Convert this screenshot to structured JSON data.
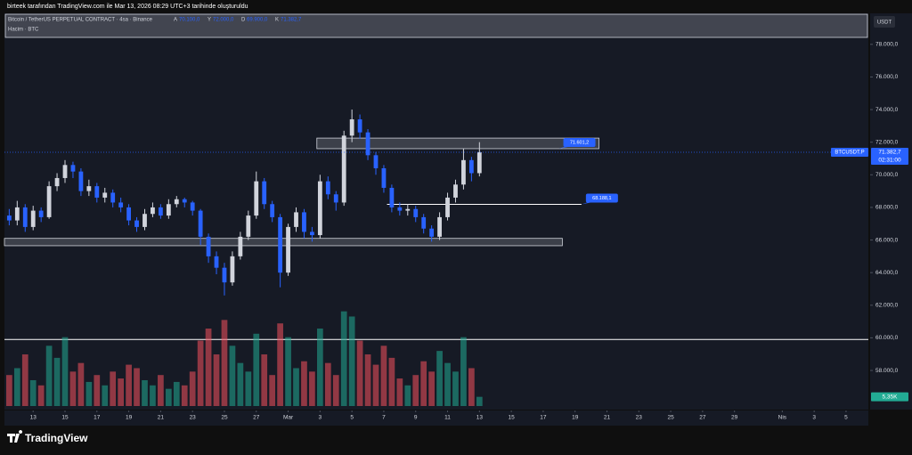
{
  "header": "birteek tarafından TradingView.com ile Mar 13, 2026 08:29 UTC+3 tarihinde oluşturuldu",
  "footer": "TradingView",
  "chart_data": {
    "type": "candlestick",
    "title": "Bitcoin / TetherUS PERPETUAL CONTRACT · 4sa · Binance",
    "ohlc_legend": [
      {
        "label": "A",
        "value": "70.100,0"
      },
      {
        "label": "Y",
        "value": "72.000,0"
      },
      {
        "label": "D",
        "value": "69.900,0"
      },
      {
        "label": "K",
        "value": "71.382,7"
      }
    ],
    "volume_title": "Hacim · BTC",
    "currency": "USDT",
    "symbol": "BTCUSDT.P",
    "last_price": {
      "value": 71382.7,
      "label": "71.382,7"
    },
    "countdown": "02:31:00",
    "volume_label": {
      "value": 5.35,
      "label": "5,35K"
    },
    "up_color": "#d1d4dc",
    "down_color": "#2962ff",
    "volume_up_color": "#22ab94",
    "volume_down_color": "#f7525f",
    "grid": false,
    "xlim": [
      -1.8,
      52.4
    ],
    "ylim": [
      55600,
      79900
    ],
    "volume_ylim": [
      0,
      60
    ],
    "yticks": [
      {
        "value": 58000,
        "label": "58.000,0"
      },
      {
        "value": 60000,
        "label": "60.000,0"
      },
      {
        "value": 62000,
        "label": "62.000,0"
      },
      {
        "value": 64000,
        "label": "64.000,0"
      },
      {
        "value": 66000,
        "label": "66.000,0"
      },
      {
        "value": 68000,
        "label": "68.000,0"
      },
      {
        "value": 70000,
        "label": "70.000,0"
      },
      {
        "value": 72000,
        "label": "72.000,0"
      },
      {
        "value": 74000,
        "label": "74.000,0"
      },
      {
        "value": 76000,
        "label": "76.000,0"
      },
      {
        "value": 78000,
        "label": "78.000,0"
      }
    ],
    "xticks": [
      {
        "value": 0,
        "label": "13"
      },
      {
        "value": 2,
        "label": "15"
      },
      {
        "value": 4,
        "label": "17"
      },
      {
        "value": 6,
        "label": "19"
      },
      {
        "value": 8,
        "label": "21"
      },
      {
        "value": 10,
        "label": "23"
      },
      {
        "value": 12,
        "label": "25"
      },
      {
        "value": 14,
        "label": "27"
      },
      {
        "value": 16,
        "label": "Mar"
      },
      {
        "value": 18,
        "label": "3"
      },
      {
        "value": 20,
        "label": "5"
      },
      {
        "value": 22,
        "label": "7"
      },
      {
        "value": 24,
        "label": "9"
      },
      {
        "value": 26,
        "label": "11"
      },
      {
        "value": 28,
        "label": "13"
      },
      {
        "value": 30,
        "label": "15"
      },
      {
        "value": 32,
        "label": "17"
      },
      {
        "value": 34,
        "label": "19"
      },
      {
        "value": 36,
        "label": "21"
      },
      {
        "value": 38,
        "label": "23"
      },
      {
        "value": 40,
        "label": "25"
      },
      {
        "value": 42,
        "label": "27"
      },
      {
        "value": 44,
        "label": "29"
      },
      {
        "value": 47,
        "label": "Nis"
      },
      {
        "value": 49,
        "label": "3"
      },
      {
        "value": 51,
        "label": "5"
      }
    ],
    "candles": {
      "x": [
        -1.5,
        -1,
        -0.5,
        0,
        0.5,
        1,
        1.5,
        2,
        2.5,
        3,
        3.5,
        4,
        4.5,
        5,
        5.5,
        6,
        6.5,
        7,
        7.5,
        8,
        8.5,
        9,
        9.5,
        10,
        10.5,
        11,
        11.5,
        12,
        12.5,
        13,
        13.5,
        14,
        14.5,
        15,
        15.5,
        16,
        16.5,
        17,
        17.5,
        18,
        18.5,
        19,
        19.5,
        20,
        20.5,
        21,
        21.5,
        22,
        22.5,
        23,
        23.5,
        24,
        24.5,
        25,
        25.5,
        26,
        26.5,
        27,
        27.5,
        28
      ],
      "open": [
        67500,
        67200,
        68000,
        66800,
        67800,
        67400,
        69300,
        69800,
        70600,
        70200,
        69000,
        69300,
        68600,
        68900,
        68300,
        68000,
        67200,
        66800,
        67600,
        68000,
        67500,
        68200,
        68500,
        68300,
        67800,
        66200,
        65000,
        64300,
        63400,
        65000,
        66200,
        67500,
        69600,
        68200,
        67400,
        64000,
        66800,
        67700,
        66500,
        66300,
        69600,
        68800,
        68300,
        72400,
        73400,
        72600,
        71200,
        70400,
        69200,
        68000,
        67800,
        67900,
        67400,
        66700,
        66200,
        67400,
        68600,
        69400,
        70900,
        70100
      ],
      "high": [
        67900,
        68400,
        68200,
        68100,
        68000,
        69600,
        70100,
        70900,
        70800,
        70400,
        69700,
        69500,
        69200,
        69100,
        68600,
        68200,
        67400,
        67900,
        68300,
        68200,
        68500,
        68700,
        68600,
        68400,
        67900,
        66400,
        65300,
        64600,
        65300,
        66500,
        67800,
        70200,
        69800,
        68400,
        67600,
        67000,
        68000,
        67900,
        66800,
        70000,
        69900,
        69000,
        72700,
        74000,
        73700,
        72800,
        71400,
        70600,
        69400,
        68300,
        68200,
        68100,
        67600,
        66900,
        67700,
        68900,
        69700,
        71600,
        71100,
        72000
      ],
      "low": [
        66900,
        66900,
        66500,
        66600,
        67100,
        67300,
        69000,
        69500,
        69800,
        68700,
        68700,
        68300,
        68300,
        68000,
        67700,
        66900,
        66500,
        66600,
        67400,
        67300,
        67300,
        68000,
        68000,
        67500,
        65700,
        64600,
        63900,
        62600,
        63200,
        64800,
        66000,
        67300,
        67900,
        67100,
        63100,
        63800,
        66500,
        66100,
        65900,
        66100,
        68500,
        67800,
        68100,
        72000,
        72200,
        70900,
        70000,
        68900,
        67700,
        67500,
        67500,
        67100,
        66400,
        65900,
        66000,
        67200,
        68300,
        69100,
        69600,
        69900
      ],
      "close": [
        67200,
        68000,
        66800,
        67800,
        67400,
        69300,
        69800,
        70600,
        70200,
        69000,
        69300,
        68600,
        68900,
        68300,
        68000,
        67200,
        66800,
        67600,
        68000,
        67500,
        68200,
        68500,
        68300,
        67800,
        66200,
        65000,
        64300,
        63400,
        65000,
        66200,
        67500,
        69600,
        68200,
        67400,
        64000,
        66800,
        67700,
        66500,
        66300,
        69600,
        68800,
        68300,
        72400,
        73400,
        72600,
        71200,
        70400,
        69200,
        68000,
        67800,
        67900,
        67400,
        66700,
        66200,
        67400,
        68600,
        69400,
        70900,
        70100,
        71382.7
      ],
      "volume": [
        18,
        22,
        30,
        15,
        12,
        35,
        28,
        40,
        20,
        25,
        14,
        18,
        12,
        20,
        16,
        24,
        22,
        15,
        12,
        18,
        10,
        14,
        12,
        20,
        38,
        45,
        30,
        50,
        35,
        25,
        20,
        42,
        30,
        18,
        48,
        40,
        22,
        26,
        20,
        45,
        25,
        18,
        55,
        52,
        38,
        30,
        24,
        35,
        28,
        16,
        12,
        18,
        26,
        20,
        32,
        25,
        20,
        40,
        22,
        5.35
      ]
    },
    "zones": [
      {
        "top": 72250,
        "bottom": 71601.2,
        "x0": 17.8,
        "x1": 35.5,
        "label": "71.601,2"
      },
      {
        "top": 66100,
        "bottom": 65650,
        "x0": -1.8,
        "x1": 33.2
      }
    ],
    "hlines": [
      {
        "value": 68188.1,
        "x0": 22.2,
        "x1": 34.4,
        "label": "68.188,1"
      },
      {
        "value": 59900,
        "x0": -1.8,
        "x1": 52.4
      }
    ]
  }
}
